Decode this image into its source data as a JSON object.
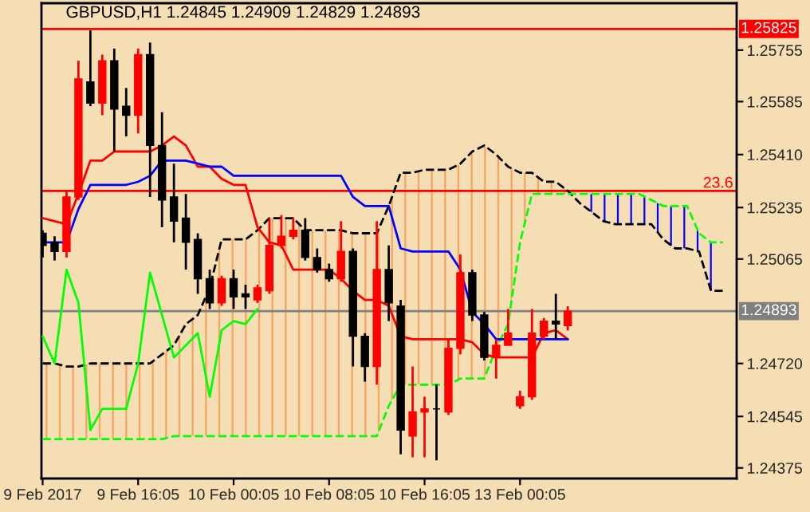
{
  "chart_data": {
    "type": "candlestick",
    "title": "GBPUSD,H1 1.24845 1.24909 1.24829 1.24893",
    "categories": [
      "9 Feb 2017",
      null,
      null,
      null,
      null,
      null,
      null,
      null,
      "9 Feb 16:05",
      null,
      null,
      null,
      null,
      null,
      null,
      null,
      "10 Feb 00:05",
      null,
      null,
      null,
      null,
      null,
      null,
      null,
      "10 Feb 08:05",
      null,
      null,
      null,
      null,
      null,
      null,
      null,
      "10 Feb 16:05",
      null,
      null,
      null,
      null,
      null,
      null,
      null,
      "13 Feb 00:05",
      null,
      null,
      null,
      null,
      null,
      null,
      null,
      null,
      null,
      null,
      null,
      null,
      null,
      null,
      null,
      null,
      null
    ],
    "ohlc": [
      [
        1.2515,
        1.2516,
        1.2507,
        1.2511
      ],
      [
        1.2512,
        1.2514,
        1.2506,
        1.2509
      ],
      [
        1.2509,
        1.2529,
        1.2507,
        1.2527
      ],
      [
        1.2527,
        1.2572,
        1.2526,
        1.2566
      ],
      [
        1.2565,
        1.2582,
        1.2557,
        1.2558
      ],
      [
        1.2558,
        1.2574,
        1.2554,
        1.2572
      ],
      [
        1.2572,
        1.2576,
        1.2542,
        1.2556
      ],
      [
        1.2557,
        1.2563,
        1.2547,
        1.2554
      ],
      [
        1.2554,
        1.2576,
        1.2548,
        1.2574
      ],
      [
        1.2574,
        1.2578,
        1.2527,
        1.2544
      ],
      [
        1.2544,
        1.2555,
        1.2517,
        1.2526
      ],
      [
        1.2527,
        1.2538,
        1.2512,
        1.2519
      ],
      [
        1.252,
        1.2528,
        1.2503,
        1.2512
      ],
      [
        1.2513,
        1.2515,
        1.2495,
        1.25
      ],
      [
        1.25,
        1.2503,
        1.249,
        1.2492
      ],
      [
        1.2492,
        1.2501,
        1.2491,
        1.25
      ],
      [
        1.25,
        1.2503,
        1.249,
        1.2494
      ],
      [
        1.2495,
        1.2498,
        1.249,
        1.2494
      ],
      [
        1.2493,
        1.2498,
        1.2492,
        1.2497
      ],
      [
        1.2496,
        1.252,
        1.2495,
        1.2511
      ],
      [
        1.2511,
        1.2521,
        1.251,
        1.2514
      ],
      [
        1.2514,
        1.252,
        1.2513,
        1.2516
      ],
      [
        1.2516,
        1.252,
        1.2506,
        1.2507
      ],
      [
        1.2507,
        1.251,
        1.2502,
        1.2503
      ],
      [
        1.2503,
        1.2505,
        1.2499,
        1.25
      ],
      [
        1.25,
        1.2519,
        1.2499,
        1.2509
      ],
      [
        1.2509,
        1.251,
        1.2471,
        1.2481
      ],
      [
        1.2481,
        1.2482,
        1.2466,
        1.2471
      ],
      [
        1.2471,
        1.2519,
        1.2465,
        1.2503
      ],
      [
        1.2503,
        1.2511,
        1.2486,
        1.2492
      ],
      [
        1.2491,
        1.2493,
        1.2442,
        1.245
      ],
      [
        1.2448,
        1.2471,
        1.2441,
        1.2456
      ],
      [
        1.2456,
        1.2461,
        1.2441,
        1.2457
      ],
      [
        1.2457,
        1.2465,
        1.244,
        1.2457
      ],
      [
        1.2456,
        1.248,
        1.2455,
        1.2477
      ],
      [
        1.2477,
        1.2508,
        1.2475,
        1.2502
      ],
      [
        1.2502,
        1.2503,
        1.2486,
        1.2488
      ],
      [
        1.2488,
        1.2489,
        1.2473,
        1.2474
      ],
      [
        1.2474,
        1.248,
        1.2467,
        1.2478
      ],
      [
        1.2478,
        1.249,
        1.2478,
        1.2482
      ],
      [
        1.2458,
        1.2463,
        1.2457,
        1.2461
      ],
      [
        1.2461,
        1.249,
        1.246,
        1.2482
      ],
      [
        1.2481,
        1.2487,
        1.248,
        1.2486
      ],
      [
        1.2486,
        1.2495,
        1.248,
        1.2485
      ],
      [
        1.24845,
        1.24909,
        1.24829,
        1.24893
      ],
      null,
      null,
      null,
      null,
      null,
      null,
      null,
      null,
      null,
      null,
      null,
      null,
      null
    ],
    "colors": [
      "#000000",
      "#000000",
      "#ff0000",
      "#ff0000",
      "#000000",
      "#ff0000",
      "#000000",
      "#000000",
      "#ff0000",
      "#000000",
      "#000000",
      "#000000",
      "#000000",
      "#000000",
      "#000000",
      "#ff0000",
      "#000000",
      "#000000",
      "#ff0000",
      "#ff0000",
      "#ff0000",
      "#ff0000",
      "#000000",
      "#000000",
      "#000000",
      "#ff0000",
      "#000000",
      "#000000",
      "#ff0000",
      "#000000",
      "#000000",
      "#ff0000",
      "#ff0000",
      "#000000",
      "#ff0000",
      "#ff0000",
      "#000000",
      "#000000",
      "#ff0000",
      "#ff0000",
      "#ff0000",
      "#ff0000",
      "#ff0000",
      "#000000",
      "#ff0000",
      null,
      null,
      null,
      null,
      null,
      null,
      null,
      null,
      null,
      null,
      null,
      null,
      null
    ],
    "series": [
      {
        "type": "line",
        "color": "#000000",
        "line_style": "dashed",
        "lower": [
          1.2447,
          1.2447,
          1.2447,
          1.2447,
          1.2447,
          1.2447,
          1.2447,
          1.2447,
          1.2447,
          1.2447,
          1.2447,
          1.2448,
          1.2448,
          1.2448,
          1.2448,
          1.2448,
          1.2448,
          1.2448,
          1.2448,
          1.2448,
          1.2448,
          1.2448,
          1.2448,
          1.2448,
          1.2448,
          1.2448,
          1.2448,
          1.2448,
          1.2448,
          1.2458,
          1.2465,
          1.2465,
          1.2465,
          1.2465,
          1.2465,
          1.2467,
          1.2467,
          1.2467,
          1.2477,
          1.2485,
          1.2512,
          1.2528,
          1.2528,
          1.2528,
          1.2528,
          null,
          null,
          null,
          null,
          null,
          null,
          null,
          null,
          null,
          null,
          null,
          null,
          null
        ],
        "upper": [
          1.2472,
          1.2472,
          1.2471,
          1.2471,
          1.2472,
          1.2472,
          1.2472,
          1.2472,
          1.2472,
          1.2472,
          1.2475,
          1.2478,
          1.2485,
          1.2488,
          1.2497,
          1.2513,
          1.2513,
          1.2513,
          1.2516,
          1.252,
          1.252,
          1.252,
          1.2516,
          1.2516,
          1.2516,
          1.2516,
          1.2515,
          1.2515,
          1.2515,
          1.2524,
          1.2535,
          1.2535,
          1.2536,
          1.2536,
          1.2536,
          1.2538,
          1.2542,
          1.2544,
          1.2541,
          1.2537,
          1.2535,
          1.2535,
          1.2532,
          1.2532,
          1.2529,
          null,
          null,
          null,
          null,
          null,
          null,
          null,
          null,
          null,
          null,
          null,
          null,
          null
        ],
        "values": [
          1.2472,
          1.2472,
          1.2471,
          1.2471,
          1.2472,
          1.2472,
          1.2472,
          1.2472,
          1.2472,
          1.2472,
          1.2475,
          1.2478,
          1.2485,
          1.2488,
          1.2497,
          1.2513,
          1.2513,
          1.2513,
          1.2516,
          1.252,
          1.252,
          1.252,
          1.2516,
          1.2516,
          1.2516,
          1.2516,
          1.2515,
          1.2515,
          1.2515,
          1.2524,
          1.2535,
          1.2535,
          1.2536,
          1.2536,
          1.2536,
          1.2538,
          1.2542,
          1.2544,
          1.2541,
          1.2537,
          1.2535,
          1.2535,
          1.2532,
          1.2532,
          1.2529,
          1.2525,
          1.2522,
          1.2519,
          1.2518,
          1.2518,
          1.2518,
          1.2518,
          1.2513,
          1.251,
          1.251,
          1.2509,
          1.2496,
          1.2496
        ]
      },
      {
        "type": "line",
        "color": "#00ff00",
        "line_style": "dashed",
        "lower": [
          null,
          null,
          null,
          null,
          null,
          null,
          null,
          null,
          null,
          null,
          null,
          null,
          null,
          null,
          null,
          null,
          null,
          null,
          null,
          null,
          null,
          null,
          null,
          null,
          null,
          null,
          null,
          null,
          null,
          null,
          null,
          null,
          null,
          null,
          null,
          null,
          null,
          null,
          null,
          null,
          null,
          null,
          null,
          null,
          null,
          1.2525,
          1.2522,
          1.2519,
          1.2518,
          1.2518,
          1.2518,
          1.2518,
          1.2513,
          1.251,
          1.251,
          1.2509,
          1.2496,
          1.2496
        ],
        "upper": [
          null,
          null,
          null,
          null,
          null,
          null,
          null,
          null,
          null,
          null,
          null,
          null,
          null,
          null,
          null,
          null,
          null,
          null,
          null,
          null,
          null,
          null,
          null,
          null,
          null,
          null,
          null,
          null,
          null,
          null,
          null,
          null,
          null,
          null,
          null,
          null,
          null,
          null,
          null,
          null,
          null,
          null,
          null,
          null,
          null,
          1.2528,
          1.2528,
          1.2528,
          1.2528,
          1.2528,
          1.2528,
          1.2526,
          1.2524,
          1.2524,
          1.2524,
          1.2515,
          1.2512,
          1.2512
        ],
        "values": [
          1.2447,
          1.2447,
          1.2447,
          1.2447,
          1.2447,
          1.2447,
          1.2447,
          1.2447,
          1.2447,
          1.2447,
          1.2447,
          1.2448,
          1.2448,
          1.2448,
          1.2448,
          1.2448,
          1.2448,
          1.2448,
          1.2448,
          1.2448,
          1.2448,
          1.2448,
          1.2448,
          1.2448,
          1.2448,
          1.2448,
          1.2448,
          1.2448,
          1.2448,
          1.2458,
          1.2465,
          1.2465,
          1.2465,
          1.2465,
          1.2465,
          1.2467,
          1.2467,
          1.2467,
          1.2477,
          1.2485,
          1.2512,
          1.2528,
          1.2528,
          1.2528,
          1.2528,
          1.2528,
          1.2528,
          1.2528,
          1.2528,
          1.2528,
          1.2528,
          1.2526,
          1.2524,
          1.2524,
          1.2524,
          1.2515,
          1.2512,
          1.2512
        ]
      },
      {
        "type": "line",
        "color": "#ff0000",
        "line_style": "solid",
        "values": [
          1.252,
          1.2519,
          1.2518,
          1.2528,
          1.2539,
          1.2539,
          1.2542,
          1.2542,
          1.2542,
          1.2542,
          1.2544,
          1.2547,
          1.2544,
          1.2537,
          1.2537,
          1.2533,
          1.2531,
          1.2531,
          1.2517,
          1.2512,
          1.2511,
          1.2503,
          1.2503,
          1.2503,
          1.2503,
          1.25,
          1.2496,
          1.2493,
          1.2493,
          1.2491,
          1.2481,
          1.248,
          1.248,
          1.248,
          1.248,
          1.248,
          1.2479,
          1.2475,
          1.2474,
          1.2474,
          1.2474,
          1.2474,
          1.2482,
          1.2483,
          1.248,
          null,
          null,
          null,
          null,
          null,
          null,
          null,
          null,
          null,
          null,
          null,
          null,
          null
        ]
      },
      {
        "type": "line",
        "color": "#0000ff",
        "line_style": "solid",
        "values": [
          1.2512,
          1.2512,
          1.2512,
          1.2523,
          1.2531,
          1.2531,
          1.2531,
          1.2531,
          1.2532,
          1.2534,
          1.2539,
          1.2539,
          1.2539,
          1.2538,
          1.2537,
          1.2537,
          1.2534,
          1.2534,
          1.2534,
          1.2534,
          1.2534,
          1.2534,
          1.2534,
          1.2534,
          1.2534,
          1.2534,
          1.2527,
          1.2524,
          1.2524,
          1.2524,
          1.251,
          1.2509,
          1.2509,
          1.2509,
          1.2509,
          1.2503,
          1.2489,
          1.2485,
          1.248,
          1.248,
          1.248,
          1.248,
          1.248,
          1.248,
          1.248,
          null,
          null,
          null,
          null,
          null,
          null,
          null,
          null,
          null,
          null,
          null,
          null,
          null
        ]
      },
      {
        "type": "line",
        "color": "#00ff00",
        "line_style": "solid",
        "values": [
          1.2481,
          1.2472,
          1.2503,
          1.2492,
          1.245,
          1.2457,
          1.2457,
          1.2457,
          1.2472,
          1.2502,
          1.2488,
          1.2474,
          1.2478,
          1.2482,
          1.2461,
          1.2483,
          1.2486,
          1.2485,
          1.249,
          null,
          null,
          null,
          null,
          null,
          null,
          null,
          null,
          null,
          null,
          null,
          null,
          null,
          null,
          null,
          null,
          null,
          null,
          null,
          null,
          null,
          null,
          null,
          null,
          null,
          null,
          null,
          null,
          null,
          null,
          null,
          null,
          null,
          null,
          null,
          null,
          null,
          null,
          null
        ]
      }
    ],
    "ref_lines": [
      {
        "axis": "y",
        "value": 1.25825,
        "label": "1.25825",
        "color": "#ff0000"
      },
      {
        "axis": "y",
        "value": 1.2529,
        "color": "#ff0000"
      },
      {
        "axis": "y",
        "value": 1.24893,
        "label": "1.24893",
        "color": "#808080"
      }
    ],
    "annotations": [
      {
        "text": "23.6",
        "y": 1.2529
      }
    ],
    "ylim": [
      1.2434,
      1.2591
    ],
    "yticks": [
      {
        "value": 1.24375,
        "label": "1.24375"
      },
      {
        "value": 1.24545,
        "label": "1.24545"
      },
      {
        "value": 1.2472,
        "label": "1.24720"
      },
      {
        "value": 1.25065,
        "label": "1.25065"
      },
      {
        "value": 1.25235,
        "label": "1.25235"
      },
      {
        "value": 1.2541,
        "label": "1.25410"
      },
      {
        "value": 1.25585,
        "label": "1.25585"
      },
      {
        "value": 1.25755,
        "label": "1.25755"
      }
    ],
    "grid": false,
    "legend": false
  }
}
